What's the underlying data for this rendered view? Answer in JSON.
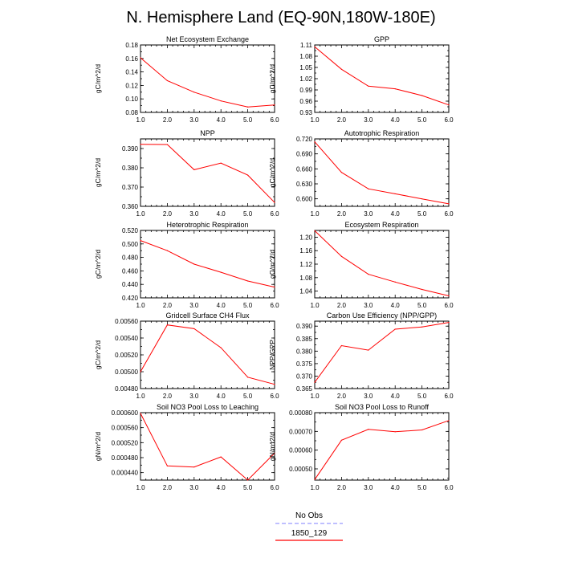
{
  "title": "N. Hemisphere Land (EQ-90N,180W-180E)",
  "legend": {
    "entries": [
      {
        "label": "No Obs",
        "color": "#9999ff",
        "dashed": true
      },
      {
        "label": "1850_129",
        "color": "#ff0000",
        "dashed": false
      }
    ]
  },
  "chart_data": [
    {
      "type": "line",
      "title": "Net Ecosystem Exchange",
      "ylabel": "gC/m^2/d",
      "x": [
        1,
        2,
        3,
        4,
        5,
        6
      ],
      "xlim": [
        1,
        6
      ],
      "xticks": [
        "1.0",
        "2.0",
        "3.0",
        "4.0",
        "5.0",
        "6.0"
      ],
      "ylim": [
        0.08,
        0.18
      ],
      "yticks": [
        0.08,
        0.1,
        0.12,
        0.14,
        0.16,
        0.18
      ],
      "ytick_labels": [
        "0.08",
        "0.10",
        "0.12",
        "0.14",
        "0.16",
        "0.18"
      ],
      "series": [
        {
          "name": "1850_129",
          "values": [
            0.161,
            0.127,
            0.11,
            0.097,
            0.088,
            0.091
          ]
        }
      ]
    },
    {
      "type": "line",
      "title": "GPP",
      "ylabel": "gC/m^2/d",
      "x": [
        1,
        2,
        3,
        4,
        5,
        6
      ],
      "xlim": [
        1,
        6
      ],
      "xticks": [
        "1.0",
        "2.0",
        "3.0",
        "4.0",
        "5.0",
        "6.0"
      ],
      "ylim": [
        0.93,
        1.11
      ],
      "yticks": [
        0.93,
        0.96,
        0.99,
        1.02,
        1.05,
        1.08,
        1.11
      ],
      "ytick_labels": [
        "0.93",
        "0.96",
        "0.99",
        "1.02",
        "1.05",
        "1.08",
        "1.11"
      ],
      "series": [
        {
          "name": "1850_129",
          "values": [
            1.105,
            1.045,
            1.0,
            0.993,
            0.975,
            0.95
          ]
        }
      ]
    },
    {
      "type": "line",
      "title": "NPP",
      "ylabel": "gC/m^2/d",
      "x": [
        1,
        2,
        3,
        4,
        5,
        6
      ],
      "xlim": [
        1,
        6
      ],
      "xticks": [
        "1.0",
        "2.0",
        "3.0",
        "4.0",
        "5.0",
        "6.0"
      ],
      "ylim": [
        0.36,
        0.395
      ],
      "yticks": [
        0.36,
        0.37,
        0.38,
        0.39
      ],
      "ytick_labels": [
        "0.360",
        "0.370",
        "0.380",
        "0.390"
      ],
      "series": [
        {
          "name": "1850_129",
          "values": [
            0.3922,
            0.3921,
            0.379,
            0.3824,
            0.3762,
            0.362
          ]
        }
      ]
    },
    {
      "type": "line",
      "title": "Autotrophic Respiration",
      "ylabel": "gC/m^2/d",
      "x": [
        1,
        2,
        3,
        4,
        5,
        6
      ],
      "xlim": [
        1,
        6
      ],
      "xticks": [
        "1.0",
        "2.0",
        "3.0",
        "4.0",
        "5.0",
        "6.0"
      ],
      "ylim": [
        0.585,
        0.72
      ],
      "yticks": [
        0.6,
        0.63,
        0.66,
        0.69,
        0.72
      ],
      "ytick_labels": [
        "0.600",
        "0.630",
        "0.660",
        "0.690",
        "0.720"
      ],
      "series": [
        {
          "name": "1850_129",
          "values": [
            0.714,
            0.653,
            0.62,
            0.61,
            0.6,
            0.59
          ]
        }
      ]
    },
    {
      "type": "line",
      "title": "Heterotrophic Respiration",
      "ylabel": "gC/m^2/d",
      "x": [
        1,
        2,
        3,
        4,
        5,
        6
      ],
      "xlim": [
        1,
        6
      ],
      "xticks": [
        "1.0",
        "2.0",
        "3.0",
        "4.0",
        "5.0",
        "6.0"
      ],
      "ylim": [
        0.42,
        0.52
      ],
      "yticks": [
        0.42,
        0.44,
        0.46,
        0.48,
        0.5,
        0.52
      ],
      "ytick_labels": [
        "0.420",
        "0.440",
        "0.460",
        "0.480",
        "0.500",
        "0.520"
      ],
      "series": [
        {
          "name": "1850_129",
          "values": [
            0.505,
            0.49,
            0.47,
            0.458,
            0.445,
            0.436
          ]
        }
      ]
    },
    {
      "type": "line",
      "title": "Ecosystem Respiration",
      "ylabel": "gC/m^2/d",
      "x": [
        1,
        2,
        3,
        4,
        5,
        6
      ],
      "xlim": [
        1,
        6
      ],
      "xticks": [
        "1.0",
        "2.0",
        "3.0",
        "4.0",
        "5.0",
        "6.0"
      ],
      "ylim": [
        1.02,
        1.22
      ],
      "yticks": [
        1.04,
        1.08,
        1.12,
        1.16,
        1.2
      ],
      "ytick_labels": [
        "1.04",
        "1.08",
        "1.12",
        "1.16",
        "1.20"
      ],
      "series": [
        {
          "name": "1850_129",
          "values": [
            1.219,
            1.143,
            1.09,
            1.067,
            1.045,
            1.026
          ]
        }
      ]
    },
    {
      "type": "line",
      "title": "Gridcell Surface CH4 Flux",
      "ylabel": "gC/m^2/d",
      "x": [
        1,
        2,
        3,
        4,
        5,
        6
      ],
      "xlim": [
        1,
        6
      ],
      "xticks": [
        "1.0",
        "2.0",
        "3.0",
        "4.0",
        "5.0",
        "6.0"
      ],
      "ylim": [
        0.0048,
        0.0056
      ],
      "yticks": [
        0.0048,
        0.005,
        0.0052,
        0.0054,
        0.0056
      ],
      "ytick_labels": [
        "0.00480",
        "0.00500",
        "0.00520",
        "0.00540",
        "0.00560"
      ],
      "series": [
        {
          "name": "1850_129",
          "values": [
            0.005,
            0.005555,
            0.00551,
            0.005285,
            0.004935,
            0.00485
          ]
        }
      ]
    },
    {
      "type": "line",
      "title": "Carbon Use Efficiency (NPP/GPP)",
      "ylabel": "NPP/GPP",
      "x": [
        1,
        2,
        3,
        4,
        5,
        6
      ],
      "xlim": [
        1,
        6
      ],
      "xticks": [
        "1.0",
        "2.0",
        "3.0",
        "4.0",
        "5.0",
        "6.0"
      ],
      "ylim": [
        0.365,
        0.392
      ],
      "yticks": [
        0.365,
        0.37,
        0.375,
        0.38,
        0.385,
        0.39
      ],
      "ytick_labels": [
        "0.365",
        "0.370",
        "0.375",
        "0.380",
        "0.385",
        "0.390"
      ],
      "series": [
        {
          "name": "1850_129",
          "values": [
            0.3675,
            0.3822,
            0.3804,
            0.3888,
            0.3897,
            0.3915
          ]
        }
      ]
    },
    {
      "type": "line",
      "title": "Soil NO3 Pool Loss to Leaching",
      "ylabel": "gN/m^2/d",
      "x": [
        1,
        2,
        3,
        4,
        5,
        6
      ],
      "xlim": [
        1,
        6
      ],
      "xticks": [
        "1.0",
        "2.0",
        "3.0",
        "4.0",
        "5.0",
        "6.0"
      ],
      "ylim": [
        0.00042,
        0.0006
      ],
      "yticks": [
        0.00044,
        0.00048,
        0.00052,
        0.00056,
        0.0006
      ],
      "ytick_labels": [
        "0.000440",
        "0.000480",
        "0.000520",
        "0.000560",
        "0.000600"
      ],
      "series": [
        {
          "name": "1850_129",
          "values": [
            0.000598,
            0.000458,
            0.000455,
            0.000482,
            0.00042,
            0.000492
          ]
        }
      ]
    },
    {
      "type": "line",
      "title": "Soil NO3 Pool Loss to Runoff",
      "ylabel": "gN/m^2/d",
      "x": [
        1,
        2,
        3,
        4,
        5,
        6
      ],
      "xlim": [
        1,
        6
      ],
      "xticks": [
        "1.0",
        "2.0",
        "3.0",
        "4.0",
        "5.0",
        "6.0"
      ],
      "ylim": [
        0.00044,
        0.0008
      ],
      "yticks": [
        0.0005,
        0.0006,
        0.0007,
        0.0008
      ],
      "ytick_labels": [
        "0.00050",
        "0.00060",
        "0.00070",
        "0.00080"
      ],
      "series": [
        {
          "name": "1850_129",
          "values": [
            0.000443,
            0.000653,
            0.000711,
            0.000698,
            0.000708,
            0.000758
          ]
        }
      ]
    }
  ]
}
